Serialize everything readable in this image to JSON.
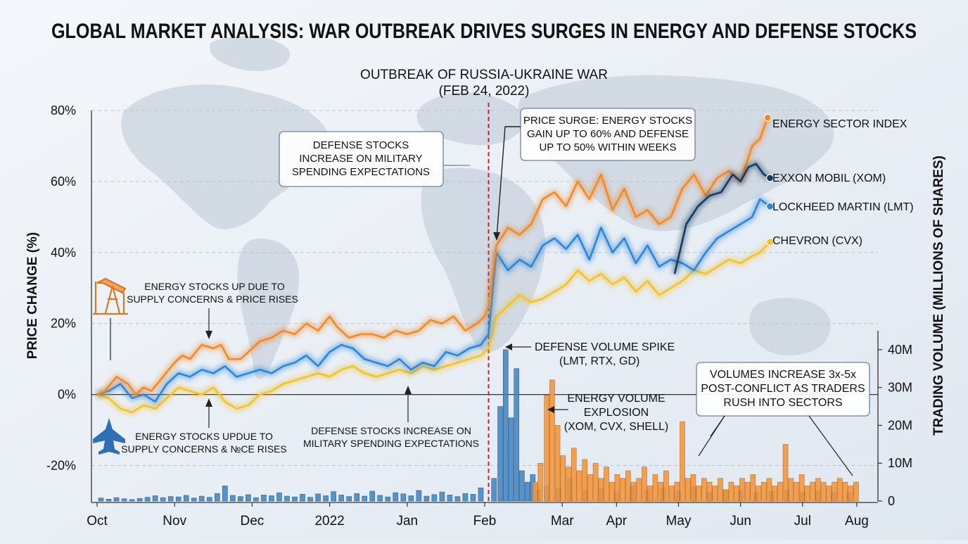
{
  "title": "GLOBAL MARKET ANALYSIS: WAR OUTBREAK DRIVES SURGES IN ENERGY AND DEFENSE STOCKS",
  "event": {
    "line1": "OUTBREAK OF RUSSIA-UKRAINE WAR",
    "line2": "(FEB 24, 2022)"
  },
  "annotations": {
    "defense_top": [
      "DEFENSE STOCKS",
      "INCREASE ON MILITARY",
      "SPENDING EXPECTATIONS"
    ],
    "surge": [
      "PRICE SURGE: ENERGY STOCKS",
      "GAIN UP TO 60% AND DEFENSE",
      "UP TO 50% WITHIN WEEKS"
    ],
    "energy_up": [
      "ENERGY STOCKS UP DUE TO",
      "SUPPLY CONCERNS & PRICE RISES"
    ],
    "energy_up2": [
      "ENERGY STOCKS UPDUE TO",
      "SUPPLY CONCERNS & №CE RISES"
    ],
    "defense_mid": [
      "DEFENSE STOCKS INCREASE ON",
      "MILITARY SPENDING EXPECTATIONS"
    ],
    "defense_vol": [
      "DEFENSE VOLUME SPIKE",
      "(LMT, RTX, GD)"
    ],
    "energy_vol": [
      "ENERGY VOLUME",
      "EXPLOSION",
      "(XOM, CVX, SHELL)"
    ],
    "volumes": [
      "VOLUMES INCREASE 3x-5x",
      "POST-CONFLICT AS TRADERS",
      "RUSH INTO SECTORS"
    ]
  },
  "colors": {
    "energy": "#f08a2c",
    "xom": "#163a66",
    "lmt": "#2f86d6",
    "cvx": "#f2c230",
    "vol_def": "#3f82bd",
    "vol_energy": "#f0953c",
    "event": "#c0282d"
  },
  "chart_data": {
    "type": "line",
    "title": "GLOBAL MARKET ANALYSIS: WAR OUTBREAK DRIVES SURGES IN ENERGY AND DEFENSE STOCKS",
    "ylabel": "PRICE CHANGE (%)",
    "y2label": "TRADING VOLUME (MILLIONS OF SHARES)",
    "ylim": [
      -30,
      80
    ],
    "y2lim": [
      0,
      45
    ],
    "yticks": [
      "80%",
      "60%",
      "40%",
      "20%",
      "0%",
      "-20%"
    ],
    "yticks_values": [
      80,
      60,
      40,
      20,
      0,
      -20
    ],
    "y2ticks": [
      "40M",
      "30M",
      "20M",
      "10M",
      "0"
    ],
    "y2ticks_values": [
      40,
      30,
      20,
      10,
      0
    ],
    "xlim": [
      0,
      10
    ],
    "xticks": [
      "Oct",
      "Nov",
      "Dec",
      "2022",
      "Jan",
      "Feb",
      "Mar",
      "Apr",
      "May",
      "Jun",
      "Jul",
      "Aug"
    ],
    "xticks_values": [
      0,
      1,
      2,
      3,
      4,
      5,
      6,
      6.7,
      7.5,
      8.3,
      9.1,
      9.8
    ],
    "event_x": 5.05,
    "series": [
      {
        "name": "ENERGY SECTOR INDEX",
        "color": "#f08a2c",
        "x": [
          0,
          0.1,
          0.25,
          0.4,
          0.5,
          0.6,
          0.7,
          0.85,
          1.0,
          1.1,
          1.2,
          1.35,
          1.5,
          1.6,
          1.7,
          1.85,
          2.0,
          2.1,
          2.25,
          2.4,
          2.55,
          2.7,
          2.85,
          3.0,
          3.1,
          3.25,
          3.4,
          3.55,
          3.7,
          3.85,
          4.0,
          4.15,
          4.3,
          4.45,
          4.6,
          4.75,
          4.9,
          5.0,
          5.05,
          5.15,
          5.3,
          5.45,
          5.6,
          5.75,
          5.9,
          6.05,
          6.2,
          6.35,
          6.5,
          6.65,
          6.8,
          6.95,
          7.1,
          7.25,
          7.4,
          7.55,
          7.7,
          7.85,
          8.0,
          8.15,
          8.3,
          8.45,
          8.55,
          8.65
        ],
        "values": [
          0,
          1,
          5,
          3,
          0,
          2,
          1,
          5,
          9,
          11,
          10,
          14,
          13,
          14,
          10,
          10,
          13,
          15,
          16,
          18,
          17,
          20,
          18,
          22,
          19,
          16,
          17,
          17,
          16,
          18,
          17,
          18,
          21,
          20,
          22,
          18,
          20,
          22,
          25,
          42,
          47,
          45,
          48,
          55,
          57,
          53,
          60,
          55,
          62,
          52,
          58,
          50,
          52,
          48,
          50,
          58,
          62,
          56,
          61,
          63,
          60,
          70,
          72,
          78
        ]
      },
      {
        "name": "EXXON MOBIL (XOM)",
        "color": "#163a66",
        "x": [
          7.45,
          7.6,
          7.75,
          7.9,
          8.05,
          8.2,
          8.3,
          8.4,
          8.5,
          8.6,
          8.68
        ],
        "values": [
          34,
          48,
          53,
          56,
          57,
          62,
          60,
          64,
          65,
          62,
          61
        ]
      },
      {
        "name": "LOCKHEED MARTIN (LMT)",
        "color": "#2f86d6",
        "x": [
          0,
          0.15,
          0.3,
          0.45,
          0.6,
          0.75,
          0.9,
          1.05,
          1.2,
          1.35,
          1.5,
          1.65,
          1.8,
          1.95,
          2.1,
          2.25,
          2.4,
          2.55,
          2.7,
          2.85,
          3.0,
          3.15,
          3.3,
          3.45,
          3.6,
          3.75,
          3.9,
          4.05,
          4.2,
          4.35,
          4.5,
          4.65,
          4.8,
          4.95,
          5.05,
          5.15,
          5.3,
          5.45,
          5.6,
          5.75,
          5.9,
          6.05,
          6.2,
          6.35,
          6.5,
          6.65,
          6.8,
          6.95,
          7.1,
          7.25,
          7.4,
          7.55,
          7.7,
          7.85,
          8.0,
          8.15,
          8.3,
          8.45,
          8.55,
          8.68
        ],
        "values": [
          0,
          1,
          3,
          -1,
          0,
          -2,
          3,
          6,
          5,
          7,
          6,
          8,
          5,
          6,
          7,
          6,
          8,
          9,
          11,
          8,
          12,
          14,
          13,
          10,
          9,
          8,
          10,
          7,
          9,
          8,
          12,
          11,
          13,
          14,
          17,
          40,
          35,
          38,
          36,
          42,
          44,
          41,
          45,
          38,
          47,
          40,
          44,
          37,
          42,
          36,
          38,
          37,
          35,
          40,
          44,
          46,
          48,
          50,
          55,
          53
        ]
      },
      {
        "name": "CHEVRON (CVX)",
        "color": "#f2c230",
        "x": [
          0,
          0.15,
          0.3,
          0.45,
          0.6,
          0.75,
          0.9,
          1.05,
          1.2,
          1.35,
          1.5,
          1.65,
          1.8,
          1.95,
          2.1,
          2.25,
          2.4,
          2.55,
          2.7,
          2.85,
          3.0,
          3.15,
          3.3,
          3.45,
          3.6,
          3.75,
          3.9,
          4.05,
          4.2,
          4.35,
          4.5,
          4.65,
          4.8,
          4.95,
          5.05,
          5.15,
          5.3,
          5.45,
          5.6,
          5.75,
          5.9,
          6.05,
          6.2,
          6.35,
          6.5,
          6.65,
          6.8,
          6.95,
          7.1,
          7.25,
          7.4,
          7.55,
          7.7,
          7.85,
          8.0,
          8.15,
          8.3,
          8.45,
          8.55,
          8.68
        ],
        "values": [
          0,
          -1,
          -4,
          -5,
          -3,
          -4,
          -1,
          2,
          1,
          0,
          2,
          -2,
          -4,
          -3,
          0,
          1,
          3,
          4,
          5,
          6,
          5,
          7,
          8,
          6,
          5,
          6,
          7,
          6,
          8,
          7,
          8,
          9,
          10,
          11,
          13,
          22,
          25,
          28,
          26,
          27,
          29,
          31,
          35,
          32,
          34,
          31,
          33,
          29,
          32,
          28,
          30,
          32,
          35,
          34,
          36,
          38,
          37,
          39,
          40,
          43
        ]
      }
    ],
    "volume_defense": {
      "x": [
        0.05,
        0.15,
        0.25,
        0.35,
        0.45,
        0.55,
        0.65,
        0.75,
        0.85,
        0.95,
        1.05,
        1.15,
        1.25,
        1.35,
        1.45,
        1.55,
        1.65,
        1.75,
        1.85,
        1.95,
        2.05,
        2.15,
        2.25,
        2.35,
        2.45,
        2.55,
        2.65,
        2.75,
        2.85,
        2.95,
        3.05,
        3.15,
        3.25,
        3.35,
        3.45,
        3.55,
        3.65,
        3.75,
        3.85,
        3.95,
        4.05,
        4.15,
        4.25,
        4.35,
        4.45,
        4.55,
        4.65,
        4.75,
        4.85,
        4.95,
        5.12,
        5.2,
        5.27,
        5.34,
        5.41,
        5.48,
        5.55,
        5.62,
        5.69,
        5.8,
        5.95,
        6.1,
        6.3,
        6.5,
        6.7,
        6.9,
        7.1,
        7.3,
        7.5,
        7.7,
        7.9,
        8.1,
        8.3,
        8.5,
        8.7,
        8.9,
        9.1,
        9.3,
        9.5,
        9.7
      ],
      "values": [
        0.8,
        0.5,
        0.9,
        0.6,
        0.4,
        0.7,
        1.0,
        1.4,
        0.9,
        1.2,
        1.1,
        1.5,
        0.8,
        1.3,
        1.0,
        2.0,
        4.0,
        1.5,
        1.2,
        1.7,
        0.9,
        1.6,
        1.4,
        2.2,
        1.3,
        1.1,
        1.8,
        1.0,
        1.9,
        1.4,
        2.5,
        1.6,
        1.2,
        2.0,
        1.3,
        2.6,
        1.5,
        1.1,
        2.2,
        1.9,
        1.4,
        2.8,
        1.3,
        1.7,
        2.4,
        1.6,
        1.2,
        2.0,
        1.8,
        3.5,
        6.0,
        25.0,
        40.0,
        22.0,
        35.0,
        8.0,
        5.0,
        7.0,
        3.0,
        4.0,
        3.5,
        6.0,
        2.8,
        3.2,
        2.5,
        4.0,
        3.0,
        3.5,
        2.6,
        3.8,
        2.4,
        3.0,
        2.7,
        2.2,
        2.5,
        2.9,
        2.3,
        2.6,
        2.4,
        2.1
      ]
    },
    "volume_energy": {
      "x": [
        5.65,
        5.72,
        5.8,
        5.87,
        5.94,
        6.01,
        6.08,
        6.15,
        6.22,
        6.29,
        6.36,
        6.43,
        6.5,
        6.57,
        6.64,
        6.71,
        6.78,
        6.85,
        6.92,
        6.99,
        7.06,
        7.13,
        7.2,
        7.27,
        7.34,
        7.41,
        7.48,
        7.55,
        7.62,
        7.69,
        7.76,
        7.83,
        7.9,
        7.97,
        8.04,
        8.11,
        8.18,
        8.25,
        8.32,
        8.39,
        8.46,
        8.53,
        8.6,
        8.67,
        8.74,
        8.81,
        8.88,
        8.95,
        9.02,
        9.09,
        9.16,
        9.23,
        9.3,
        9.37,
        9.44,
        9.51,
        9.58,
        9.65,
        9.72,
        9.79
      ],
      "values": [
        5,
        10,
        28,
        32,
        20,
        12,
        9,
        14,
        8,
        11,
        7,
        10,
        6,
        9,
        5,
        7,
        6,
        8,
        5,
        6,
        9,
        4,
        7,
        5,
        8,
        4,
        5,
        21,
        6,
        7,
        4,
        6,
        5,
        4,
        6,
        3,
        5,
        4,
        6,
        5,
        7,
        4,
        5,
        6,
        4,
        5,
        15,
        6,
        5,
        7,
        4,
        5,
        6,
        5,
        4,
        5,
        6,
        5,
        4,
        5
      ]
    }
  }
}
